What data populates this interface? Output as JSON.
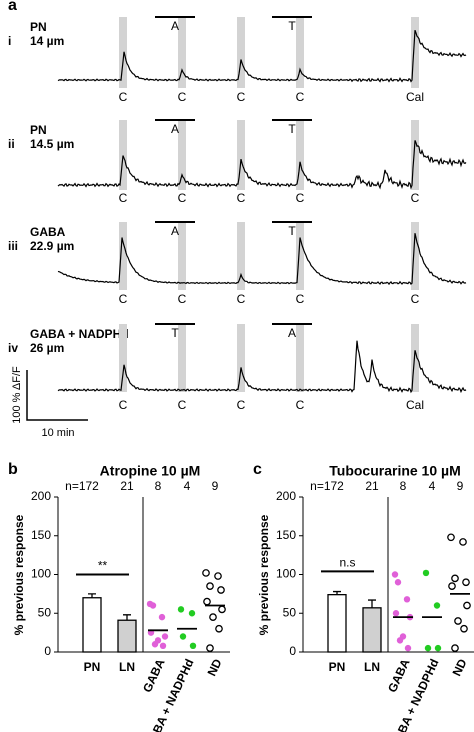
{
  "panel_a": {
    "letter": "a",
    "rows": [
      {
        "numeral": "i",
        "cell": "PN",
        "size": "14 µm",
        "drugs": [
          "A",
          "T"
        ],
        "stimuli": [
          "C",
          "C",
          "C",
          "C",
          "Cal"
        ]
      },
      {
        "numeral": "ii",
        "cell": "PN",
        "size": "14.5 µm",
        "drugs": [
          "A",
          "T"
        ],
        "stimuli": [
          "C",
          "C",
          "C",
          "C",
          "C"
        ]
      },
      {
        "numeral": "iii",
        "cell": "GABA",
        "size": "22.9 µm",
        "drugs": [
          "A",
          "T"
        ],
        "stimuli": [
          "C",
          "C",
          "C",
          "C",
          "C"
        ]
      },
      {
        "numeral": "iv",
        "cell": "GABA + NADPHd",
        "size": "26 µm",
        "drugs": [
          "T",
          "A"
        ],
        "stimuli": [
          "C",
          "C",
          "C",
          "C",
          "Cal"
        ]
      }
    ],
    "scale_y": "100 % ΔF/F",
    "scale_x": "10 min"
  },
  "chart_data": [
    {
      "type": "bar",
      "letter": "b",
      "title": "Atropine 10 µM",
      "ylabel": "% previous response",
      "categories": [
        "PN",
        "LN",
        "GABA",
        "GABA + NADPHd",
        "ND"
      ],
      "n_labels": [
        "n=172",
        "21",
        "8",
        "4",
        "9"
      ],
      "bar_values": [
        70,
        41
      ],
      "bar_errors": [
        5,
        7
      ],
      "bar_colors": [
        "#ffffff",
        "#d0d0d0"
      ],
      "points": [
        [
          62,
          60,
          45,
          25,
          20,
          15,
          10,
          8
        ],
        [
          55,
          50,
          20,
          8
        ],
        [
          102,
          98,
          85,
          80,
          65,
          55,
          45,
          30,
          5
        ]
      ],
      "point_colors": [
        "#e060d8",
        "#22cc22",
        "#ffffff"
      ],
      "means": [
        28,
        30,
        60
      ],
      "significance": "**",
      "ylim": [
        0,
        200
      ],
      "yticks": [
        0,
        50,
        100,
        150,
        200
      ]
    },
    {
      "type": "bar",
      "letter": "c",
      "title": "Tubocurarine 10 µM",
      "ylabel": "% previous response",
      "categories": [
        "PN",
        "LN",
        "GABA",
        "GABA + NADPHd",
        "ND"
      ],
      "n_labels": [
        "n=172",
        "21",
        "8",
        "4",
        "9"
      ],
      "bar_values": [
        74,
        57
      ],
      "bar_errors": [
        4,
        10
      ],
      "bar_colors": [
        "#ffffff",
        "#d0d0d0"
      ],
      "points": [
        [
          100,
          90,
          68,
          50,
          45,
          20,
          15,
          5
        ],
        [
          102,
          60,
          5,
          5
        ],
        [
          148,
          142,
          95,
          90,
          85,
          60,
          40,
          30,
          5
        ]
      ],
      "point_colors": [
        "#e060d8",
        "#22cc22",
        "#ffffff"
      ],
      "means": [
        45,
        45,
        75
      ],
      "significance": "n.s",
      "ylim": [
        0,
        200
      ],
      "yticks": [
        0,
        50,
        100,
        150,
        200
      ]
    }
  ]
}
